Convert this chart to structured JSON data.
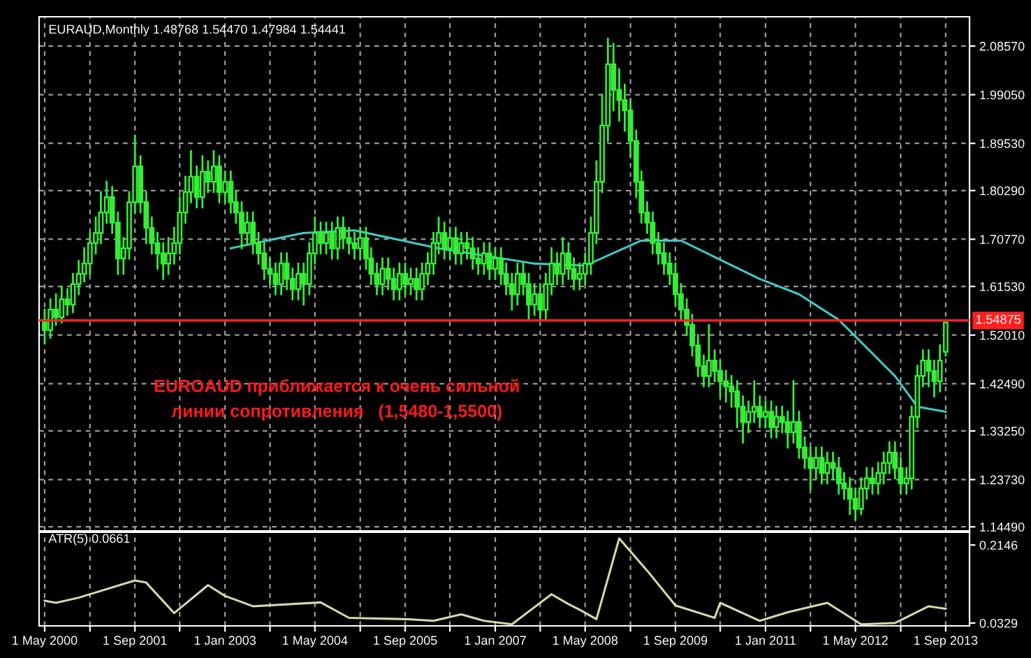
{
  "chart_data": [
    {
      "type": "candlestick",
      "title": "EURAUD,Monthly 1.48768 1.54470 1.47984 1.54441",
      "x": [
        "2000-05",
        "2000-06",
        "2000-07",
        "2000-08",
        "2000-09",
        "2000-10",
        "2000-11",
        "2000-12",
        "2001-01",
        "2001-02",
        "2001-03",
        "2001-04",
        "2001-05",
        "2001-06",
        "2001-07",
        "2001-08",
        "2001-09",
        "2001-10",
        "2001-11",
        "2001-12",
        "2002-01",
        "2002-02",
        "2002-03",
        "2002-04",
        "2002-05",
        "2002-06",
        "2002-07",
        "2002-08",
        "2002-09",
        "2002-10",
        "2002-11",
        "2002-12",
        "2003-01",
        "2003-02",
        "2003-03",
        "2003-04",
        "2003-05",
        "2003-06",
        "2003-07",
        "2003-08",
        "2003-09",
        "2003-10",
        "2003-11",
        "2003-12",
        "2004-01",
        "2004-02",
        "2004-03",
        "2004-04",
        "2004-05",
        "2004-06",
        "2004-07",
        "2004-08",
        "2004-09",
        "2004-10",
        "2004-11",
        "2004-12",
        "2005-01",
        "2005-02",
        "2005-03",
        "2005-04",
        "2005-05",
        "2005-06",
        "2005-07",
        "2005-08",
        "2005-09",
        "2005-10",
        "2005-11",
        "2005-12",
        "2006-01",
        "2006-02",
        "2006-03",
        "2006-04",
        "2006-05",
        "2006-06",
        "2006-07",
        "2006-08",
        "2006-09",
        "2006-10",
        "2006-11",
        "2006-12",
        "2007-01",
        "2007-02",
        "2007-03",
        "2007-04",
        "2007-05",
        "2007-06",
        "2007-07",
        "2007-08",
        "2007-09",
        "2007-10",
        "2007-11",
        "2007-12",
        "2008-01",
        "2008-02",
        "2008-03",
        "2008-04",
        "2008-05",
        "2008-06",
        "2008-07",
        "2008-08",
        "2008-09",
        "2008-10",
        "2008-11",
        "2008-12",
        "2009-01",
        "2009-02",
        "2009-03",
        "2009-04",
        "2009-05",
        "2009-06",
        "2009-07",
        "2009-08",
        "2009-09",
        "2009-10",
        "2009-11",
        "2009-12",
        "2010-01",
        "2010-02",
        "2010-03",
        "2010-04",
        "2010-05",
        "2010-06",
        "2010-07",
        "2010-08",
        "2010-09",
        "2010-10",
        "2010-11",
        "2010-12",
        "2011-01",
        "2011-02",
        "2011-03",
        "2011-04",
        "2011-05",
        "2011-06",
        "2011-07",
        "2011-08",
        "2011-09",
        "2011-10",
        "2011-11",
        "2011-12",
        "2012-01",
        "2012-02",
        "2012-03",
        "2012-04",
        "2012-05",
        "2012-06",
        "2012-07",
        "2012-08",
        "2012-09",
        "2012-10",
        "2012-11",
        "2012-12",
        "2013-01",
        "2013-02",
        "2013-03",
        "2013-04",
        "2013-05",
        "2013-06",
        "2013-07",
        "2013-08",
        "2013-09"
      ],
      "ohlc": [
        [
          1.55,
          1.57,
          1.505,
          1.53
        ],
        [
          1.53,
          1.59,
          1.515,
          1.57
        ],
        [
          1.57,
          1.6,
          1.54,
          1.555
        ],
        [
          1.555,
          1.615,
          1.545,
          1.59
        ],
        [
          1.59,
          1.61,
          1.56,
          1.58
        ],
        [
          1.58,
          1.64,
          1.565,
          1.62
        ],
        [
          1.62,
          1.665,
          1.6,
          1.64
        ],
        [
          1.64,
          1.69,
          1.625,
          1.66
        ],
        [
          1.66,
          1.72,
          1.64,
          1.7
        ],
        [
          1.7,
          1.75,
          1.68,
          1.72
        ],
        [
          1.72,
          1.8,
          1.7,
          1.76
        ],
        [
          1.76,
          1.82,
          1.74,
          1.79
        ],
        [
          1.79,
          1.81,
          1.72,
          1.74
        ],
        [
          1.74,
          1.76,
          1.64,
          1.67
        ],
        [
          1.67,
          1.71,
          1.64,
          1.69
        ],
        [
          1.69,
          1.8,
          1.67,
          1.78
        ],
        [
          1.78,
          1.91,
          1.76,
          1.85
        ],
        [
          1.85,
          1.87,
          1.76,
          1.78
        ],
        [
          1.78,
          1.8,
          1.7,
          1.73
        ],
        [
          1.73,
          1.75,
          1.68,
          1.7
        ],
        [
          1.7,
          1.72,
          1.65,
          1.68
        ],
        [
          1.68,
          1.7,
          1.63,
          1.66
        ],
        [
          1.66,
          1.71,
          1.64,
          1.68
        ],
        [
          1.68,
          1.73,
          1.66,
          1.7
        ],
        [
          1.7,
          1.79,
          1.68,
          1.76
        ],
        [
          1.76,
          1.83,
          1.74,
          1.8
        ],
        [
          1.8,
          1.88,
          1.78,
          1.83
        ],
        [
          1.83,
          1.85,
          1.77,
          1.79
        ],
        [
          1.79,
          1.87,
          1.77,
          1.84
        ],
        [
          1.84,
          1.86,
          1.8,
          1.82
        ],
        [
          1.82,
          1.88,
          1.8,
          1.85
        ],
        [
          1.85,
          1.87,
          1.78,
          1.8
        ],
        [
          1.8,
          1.84,
          1.78,
          1.82
        ],
        [
          1.82,
          1.84,
          1.76,
          1.78
        ],
        [
          1.78,
          1.8,
          1.74,
          1.76
        ],
        [
          1.76,
          1.78,
          1.69,
          1.72
        ],
        [
          1.72,
          1.76,
          1.7,
          1.74
        ],
        [
          1.74,
          1.76,
          1.68,
          1.7
        ],
        [
          1.7,
          1.72,
          1.66,
          1.68
        ],
        [
          1.68,
          1.7,
          1.63,
          1.65
        ],
        [
          1.65,
          1.67,
          1.62,
          1.64
        ],
        [
          1.64,
          1.66,
          1.6,
          1.62
        ],
        [
          1.62,
          1.68,
          1.6,
          1.66
        ],
        [
          1.66,
          1.68,
          1.61,
          1.63
        ],
        [
          1.63,
          1.65,
          1.59,
          1.61
        ],
        [
          1.61,
          1.66,
          1.59,
          1.64
        ],
        [
          1.64,
          1.66,
          1.58,
          1.62
        ],
        [
          1.62,
          1.7,
          1.6,
          1.68
        ],
        [
          1.68,
          1.75,
          1.66,
          1.72
        ],
        [
          1.72,
          1.74,
          1.68,
          1.7
        ],
        [
          1.7,
          1.74,
          1.68,
          1.72
        ],
        [
          1.72,
          1.74,
          1.67,
          1.69
        ],
        [
          1.69,
          1.75,
          1.67,
          1.73
        ],
        [
          1.73,
          1.75,
          1.69,
          1.71
        ],
        [
          1.71,
          1.73,
          1.68,
          1.7
        ],
        [
          1.7,
          1.72,
          1.67,
          1.69
        ],
        [
          1.69,
          1.73,
          1.67,
          1.71
        ],
        [
          1.71,
          1.73,
          1.65,
          1.67
        ],
        [
          1.67,
          1.69,
          1.62,
          1.64
        ],
        [
          1.64,
          1.66,
          1.6,
          1.62
        ],
        [
          1.62,
          1.67,
          1.6,
          1.65
        ],
        [
          1.65,
          1.67,
          1.61,
          1.63
        ],
        [
          1.63,
          1.65,
          1.59,
          1.61
        ],
        [
          1.61,
          1.66,
          1.59,
          1.64
        ],
        [
          1.64,
          1.66,
          1.6,
          1.62
        ],
        [
          1.62,
          1.65,
          1.6,
          1.63
        ],
        [
          1.63,
          1.65,
          1.59,
          1.61
        ],
        [
          1.61,
          1.66,
          1.59,
          1.64
        ],
        [
          1.64,
          1.68,
          1.62,
          1.66
        ],
        [
          1.66,
          1.72,
          1.64,
          1.7
        ],
        [
          1.7,
          1.75,
          1.68,
          1.72
        ],
        [
          1.72,
          1.74,
          1.67,
          1.69
        ],
        [
          1.69,
          1.73,
          1.67,
          1.71
        ],
        [
          1.71,
          1.73,
          1.66,
          1.68
        ],
        [
          1.68,
          1.72,
          1.66,
          1.7
        ],
        [
          1.7,
          1.72,
          1.67,
          1.69
        ],
        [
          1.69,
          1.71,
          1.65,
          1.67
        ],
        [
          1.67,
          1.69,
          1.64,
          1.66
        ],
        [
          1.66,
          1.7,
          1.64,
          1.68
        ],
        [
          1.68,
          1.7,
          1.63,
          1.65
        ],
        [
          1.65,
          1.69,
          1.63,
          1.67
        ],
        [
          1.67,
          1.69,
          1.62,
          1.64
        ],
        [
          1.64,
          1.66,
          1.6,
          1.62
        ],
        [
          1.62,
          1.64,
          1.57,
          1.6
        ],
        [
          1.6,
          1.66,
          1.58,
          1.64
        ],
        [
          1.64,
          1.66,
          1.6,
          1.62
        ],
        [
          1.62,
          1.64,
          1.55,
          1.58
        ],
        [
          1.58,
          1.62,
          1.56,
          1.6
        ],
        [
          1.6,
          1.62,
          1.55,
          1.57
        ],
        [
          1.57,
          1.64,
          1.55,
          1.62
        ],
        [
          1.62,
          1.69,
          1.6,
          1.66
        ],
        [
          1.66,
          1.68,
          1.62,
          1.64
        ],
        [
          1.64,
          1.71,
          1.62,
          1.68
        ],
        [
          1.68,
          1.7,
          1.63,
          1.65
        ],
        [
          1.65,
          1.67,
          1.61,
          1.63
        ],
        [
          1.63,
          1.66,
          1.61,
          1.64
        ],
        [
          1.64,
          1.68,
          1.62,
          1.66
        ],
        [
          1.66,
          1.75,
          1.64,
          1.72
        ],
        [
          1.72,
          1.86,
          1.7,
          1.82
        ],
        [
          1.82,
          1.99,
          1.8,
          1.93
        ],
        [
          1.93,
          2.1,
          1.9,
          2.05
        ],
        [
          2.05,
          2.09,
          1.96,
          2.0
        ],
        [
          2.0,
          2.04,
          1.94,
          1.98
        ],
        [
          1.98,
          2.01,
          1.92,
          1.96
        ],
        [
          1.96,
          1.98,
          1.87,
          1.9
        ],
        [
          1.9,
          1.92,
          1.79,
          1.82
        ],
        [
          1.82,
          1.84,
          1.74,
          1.76
        ],
        [
          1.76,
          1.78,
          1.72,
          1.74
        ],
        [
          1.74,
          1.76,
          1.68,
          1.7
        ],
        [
          1.7,
          1.72,
          1.66,
          1.68
        ],
        [
          1.68,
          1.7,
          1.64,
          1.66
        ],
        [
          1.66,
          1.68,
          1.62,
          1.64
        ],
        [
          1.64,
          1.66,
          1.58,
          1.6
        ],
        [
          1.6,
          1.62,
          1.55,
          1.57
        ],
        [
          1.57,
          1.59,
          1.52,
          1.54
        ],
        [
          1.54,
          1.56,
          1.48,
          1.5
        ],
        [
          1.5,
          1.52,
          1.44,
          1.46
        ],
        [
          1.46,
          1.48,
          1.42,
          1.44
        ],
        [
          1.44,
          1.54,
          1.42,
          1.47
        ],
        [
          1.47,
          1.49,
          1.43,
          1.45
        ],
        [
          1.45,
          1.47,
          1.4,
          1.43
        ],
        [
          1.43,
          1.45,
          1.39,
          1.42
        ],
        [
          1.42,
          1.44,
          1.38,
          1.41
        ],
        [
          1.41,
          1.43,
          1.34,
          1.38
        ],
        [
          1.38,
          1.4,
          1.31,
          1.35
        ],
        [
          1.35,
          1.39,
          1.33,
          1.37
        ],
        [
          1.37,
          1.43,
          1.35,
          1.38
        ],
        [
          1.38,
          1.4,
          1.34,
          1.36
        ],
        [
          1.36,
          1.39,
          1.34,
          1.37
        ],
        [
          1.37,
          1.39,
          1.32,
          1.34
        ],
        [
          1.34,
          1.38,
          1.32,
          1.36
        ],
        [
          1.36,
          1.38,
          1.33,
          1.35
        ],
        [
          1.35,
          1.37,
          1.3,
          1.33
        ],
        [
          1.33,
          1.43,
          1.31,
          1.35
        ],
        [
          1.35,
          1.37,
          1.28,
          1.3
        ],
        [
          1.3,
          1.32,
          1.26,
          1.28
        ],
        [
          1.28,
          1.3,
          1.22,
          1.26
        ],
        [
          1.26,
          1.3,
          1.24,
          1.28
        ],
        [
          1.28,
          1.3,
          1.23,
          1.25
        ],
        [
          1.25,
          1.29,
          1.23,
          1.27
        ],
        [
          1.27,
          1.29,
          1.24,
          1.26
        ],
        [
          1.26,
          1.28,
          1.21,
          1.23
        ],
        [
          1.23,
          1.25,
          1.2,
          1.22
        ],
        [
          1.22,
          1.24,
          1.17,
          1.2
        ],
        [
          1.2,
          1.22,
          1.16,
          1.18
        ],
        [
          1.18,
          1.24,
          1.17,
          1.22
        ],
        [
          1.22,
          1.26,
          1.2,
          1.24
        ],
        [
          1.24,
          1.26,
          1.21,
          1.23
        ],
        [
          1.23,
          1.27,
          1.21,
          1.25
        ],
        [
          1.25,
          1.29,
          1.23,
          1.27
        ],
        [
          1.27,
          1.31,
          1.25,
          1.29
        ],
        [
          1.29,
          1.31,
          1.24,
          1.26
        ],
        [
          1.26,
          1.28,
          1.21,
          1.23
        ],
        [
          1.23,
          1.26,
          1.21,
          1.24
        ],
        [
          1.24,
          1.38,
          1.22,
          1.36
        ],
        [
          1.36,
          1.46,
          1.34,
          1.44
        ],
        [
          1.44,
          1.49,
          1.42,
          1.47
        ],
        [
          1.47,
          1.49,
          1.42,
          1.45
        ],
        [
          1.45,
          1.47,
          1.4,
          1.43
        ],
        [
          1.43,
          1.5,
          1.41,
          1.47
        ],
        [
          1.48768,
          1.5447,
          1.47984,
          1.54441
        ]
      ],
      "color": "#33ee33",
      "series": [
        {
          "type": "line",
          "color": "#40c8c8",
          "x": [
            "2003-02",
            "2004-03",
            "2004-12",
            "2006-03",
            "2007-08",
            "2008-05",
            "2009-03",
            "2009-10",
            "2010-12",
            "2011-07",
            "2012-02",
            "2012-12",
            "2013-04",
            "2013-09"
          ],
          "values": [
            1.69,
            1.72,
            1.725,
            1.69,
            1.66,
            1.656,
            1.705,
            1.705,
            1.63,
            1.6,
            1.55,
            1.44,
            1.38,
            1.37
          ]
        }
      ],
      "ref_lines": [
        {
          "axis": "y",
          "value": 1.54875,
          "label": "1.54875",
          "color": "#ff2020"
        }
      ],
      "annotations": [
        "EUROAUD приближается к очень сильной\nлинии сопротивления   (1,5480-1,5500)"
      ],
      "xlim": [
        "2000-04-01",
        "2014-01-08"
      ],
      "ylim": [
        1.137,
        2.143
      ],
      "xticks": [
        {
          "value": "2000-05-01",
          "label": null
        },
        {
          "value": "2001-01-01",
          "label": null
        },
        {
          "value": "2001-09-01",
          "label": null
        },
        {
          "value": "2002-05-01",
          "label": null
        },
        {
          "value": "2003-01-01",
          "label": null
        },
        {
          "value": "2003-09-01",
          "label": null
        },
        {
          "value": "2004-05-01",
          "label": null
        },
        {
          "value": "2005-01-01",
          "label": null
        },
        {
          "value": "2005-09-01",
          "label": null
        },
        {
          "value": "2006-05-01",
          "label": null
        },
        {
          "value": "2007-01-01",
          "label": null
        },
        {
          "value": "2007-09-01",
          "label": null
        },
        {
          "value": "2008-05-01",
          "label": null
        },
        {
          "value": "2009-01-01",
          "label": null
        },
        {
          "value": "2009-09-01",
          "label": null
        },
        {
          "value": "2010-05-01",
          "label": null
        },
        {
          "value": "2011-01-01",
          "label": null
        },
        {
          "value": "2011-09-01",
          "label": null
        },
        {
          "value": "2012-05-01",
          "label": null
        },
        {
          "value": "2013-01-01",
          "label": null
        },
        {
          "value": "2013-09-01",
          "label": null
        }
      ],
      "yticks": [
        {
          "value": 1.1449,
          "label": "1.14490"
        },
        {
          "value": 1.2373,
          "label": "1.23730"
        },
        {
          "value": 1.3325,
          "label": "1.33250"
        },
        {
          "value": 1.4249,
          "label": "1.42490"
        },
        {
          "value": 1.5201,
          "label": "1.52010"
        },
        {
          "value": 1.6153,
          "label": "1.61530"
        },
        {
          "value": 1.7077,
          "label": "1.70770"
        },
        {
          "value": 1.8029,
          "label": "1.80290"
        },
        {
          "value": 1.8953,
          "label": "1.89530"
        },
        {
          "value": 1.9905,
          "label": "1.99050"
        },
        {
          "value": 2.0857,
          "label": "2.08570"
        }
      ],
      "grid": true,
      "tick_labels": "y"
    },
    {
      "type": "line",
      "title": "ATR(5) 0.0661",
      "color": "#d8d8a8",
      "x": [
        "2000-05",
        "2000-07",
        "2000-11",
        "2001-09",
        "2001-11",
        "2002-04",
        "2002-10",
        "2003-01",
        "2003-06",
        "2004-06",
        "2004-11",
        "2005-09",
        "2006-02",
        "2006-07",
        "2006-11",
        "2007-04",
        "2007-11",
        "2008-02",
        "2008-04",
        "2008-07",
        "2008-11",
        "2009-04",
        "2009-09",
        "2010-04",
        "2010-05",
        "2010-12",
        "2011-05",
        "2011-12",
        "2012-06",
        "2012-12",
        "2013-06",
        "2013-09"
      ],
      "values": [
        0.085,
        0.08,
        0.092,
        0.132,
        0.127,
        0.056,
        0.121,
        0.096,
        0.072,
        0.081,
        0.045,
        0.042,
        0.038,
        0.053,
        0.038,
        0.03,
        0.1,
        0.077,
        0.064,
        0.042,
        0.23,
        0.155,
        0.074,
        0.045,
        0.08,
        0.038,
        0.058,
        0.08,
        0.03,
        0.033,
        0.072,
        0.066
      ],
      "xlim": [
        "2000-04-01",
        "2014-01-08"
      ],
      "ylim": [
        0.0263,
        0.2443
      ],
      "xticks": [
        {
          "value": "2000-05-01",
          "label": "1 May 2000"
        },
        {
          "value": "2001-01-01",
          "label": null
        },
        {
          "value": "2001-09-01",
          "label": "1 Sep 2001"
        },
        {
          "value": "2002-05-01",
          "label": null
        },
        {
          "value": "2003-01-01",
          "label": "1 Jan 2003"
        },
        {
          "value": "2003-09-01",
          "label": null
        },
        {
          "value": "2004-05-01",
          "label": "1 May 2004"
        },
        {
          "value": "2005-01-01",
          "label": null
        },
        {
          "value": "2005-09-01",
          "label": "1 Sep 2005"
        },
        {
          "value": "2006-05-01",
          "label": null
        },
        {
          "value": "2007-01-01",
          "label": "1 Jan 2007"
        },
        {
          "value": "2007-09-01",
          "label": null
        },
        {
          "value": "2008-05-01",
          "label": "1 May 2008"
        },
        {
          "value": "2009-01-01",
          "label": null
        },
        {
          "value": "2009-09-01",
          "label": "1 Sep 2009"
        },
        {
          "value": "2010-05-01",
          "label": null
        },
        {
          "value": "2011-01-01",
          "label": "1 Jan 2011"
        },
        {
          "value": "2011-09-01",
          "label": null
        },
        {
          "value": "2012-05-01",
          "label": "1 May 2012"
        },
        {
          "value": "2013-01-01",
          "label": null
        },
        {
          "value": "2013-09-01",
          "label": "1 Sep 2013"
        }
      ],
      "yticks": [
        0.0329,
        0.2146
      ],
      "grid": "x"
    }
  ]
}
